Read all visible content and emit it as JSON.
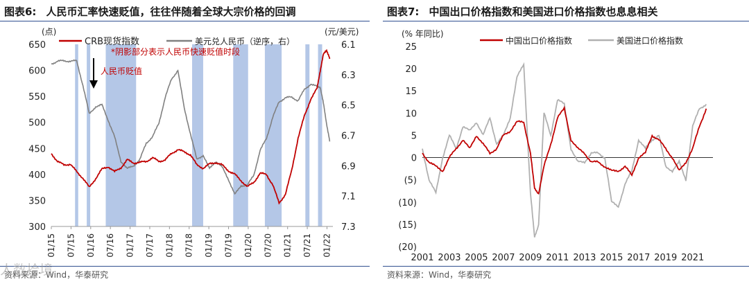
{
  "chart_data": [
    {
      "type": "line",
      "title_label": "图表6:",
      "title": "人民币汇率快速贬值，往往伴随着全球大宗价格的回调",
      "left_unit": "(点)",
      "right_unit": "(元/美元)",
      "ylim": [
        300,
        650
      ],
      "yticks": [
        300,
        350,
        400,
        450,
        500,
        550,
        600,
        650
      ],
      "y2lim": [
        7.3,
        6.1
      ],
      "y2ticks": [
        "6.1",
        "6.3",
        "6.5",
        "6.7",
        "6.9",
        "7.1",
        "7.3"
      ],
      "xlim": [
        0,
        89
      ],
      "categories": [
        "01/15",
        "07/15",
        "01/16",
        "07/16",
        "01/17",
        "07/17",
        "01/18",
        "07/18",
        "01/19",
        "07/19",
        "01/20",
        "07/20",
        "01/21",
        "07/21",
        "01/22"
      ],
      "series": [
        {
          "name": "CRB现货指数",
          "color": "#c00000",
          "axis": "left",
          "x": [
            0,
            2,
            4,
            6,
            8,
            10,
            12,
            14,
            16,
            18,
            20,
            22,
            24,
            26,
            28,
            30,
            32,
            34,
            36,
            38,
            40,
            42,
            44,
            46,
            48,
            50,
            52,
            54,
            56,
            58,
            60,
            62,
            64,
            66,
            68,
            70,
            72,
            74,
            76,
            78,
            80,
            82,
            84,
            85,
            86,
            87,
            88
          ],
          "values": [
            440,
            425,
            418,
            420,
            405,
            393,
            375,
            392,
            410,
            415,
            405,
            413,
            428,
            422,
            423,
            425,
            432,
            425,
            428,
            440,
            448,
            443,
            438,
            418,
            412,
            420,
            423,
            418,
            407,
            400,
            388,
            376,
            385,
            402,
            400,
            380,
            345,
            362,
            408,
            470,
            512,
            545,
            565,
            600,
            630,
            640,
            622
          ]
        },
        {
          "name": "美元兑人民币（逆序，右）",
          "color": "#8a8a8a",
          "axis": "right",
          "x": [
            0,
            2,
            4,
            6,
            8,
            10,
            12,
            14,
            16,
            18,
            20,
            22,
            24,
            26,
            28,
            30,
            32,
            34,
            36,
            38,
            40,
            42,
            44,
            46,
            48,
            50,
            52,
            54,
            56,
            58,
            60,
            62,
            64,
            66,
            68,
            70,
            72,
            74,
            76,
            78,
            80,
            82,
            84,
            85,
            86,
            87,
            88
          ],
          "values": [
            6.23,
            6.21,
            6.21,
            6.21,
            6.21,
            6.37,
            6.56,
            6.51,
            6.5,
            6.6,
            6.71,
            6.87,
            6.92,
            6.9,
            6.86,
            6.75,
            6.71,
            6.62,
            6.45,
            6.33,
            6.27,
            6.52,
            6.69,
            6.86,
            6.83,
            6.92,
            6.87,
            6.91,
            6.99,
            7.09,
            7.03,
            7.03,
            6.96,
            6.8,
            6.72,
            6.58,
            6.48,
            6.45,
            6.45,
            6.47,
            6.4,
            6.36,
            6.38,
            6.38,
            6.49,
            6.62,
            6.74
          ]
        }
      ],
      "shaded_spans": [
        [
          7.5,
          8.5
        ],
        [
          11.2,
          12.3
        ],
        [
          17.2,
          26.8
        ],
        [
          44.5,
          48
        ],
        [
          57.5,
          62.2
        ],
        [
          67.5,
          72.8
        ],
        [
          80.3,
          81.6
        ],
        [
          84.3,
          85.6
        ],
        [
          90,
          92.6
        ]
      ],
      "annotations": [
        "*阴影部分表示人民币快速贬值时段",
        "人民币贬值"
      ]
    },
    {
      "type": "line",
      "title_label": "图表7:",
      "title": "中国出口价格指数和美国进口价格指数也息息相关",
      "left_unit": "(% 年同比)",
      "ylim": [
        -20,
        25
      ],
      "yticks": [
        "25",
        "20",
        "15",
        "10",
        "5",
        "0",
        "(5)",
        "(10)",
        "(15)",
        "(20)"
      ],
      "xlim": [
        2001,
        2022.5
      ],
      "categories": [
        "2001",
        "2003",
        "2005",
        "2007",
        "2009",
        "2011",
        "2013",
        "2015",
        "2017",
        "2019",
        "2021"
      ],
      "series": [
        {
          "name": "中国出口价格指数",
          "color": "#c00000",
          "x": [
            2001,
            2001.5,
            2002,
            2002.5,
            2003,
            2003.5,
            2004,
            2004.5,
            2005,
            2005.5,
            2006,
            2006.5,
            2007,
            2007.5,
            2008,
            2008.5,
            2009,
            2009.3,
            2009.6,
            2010,
            2010.5,
            2011,
            2011.5,
            2012,
            2012.5,
            2013,
            2013.5,
            2014,
            2014.5,
            2015,
            2015.5,
            2016,
            2016.5,
            2017,
            2017.5,
            2018,
            2018.5,
            2019,
            2019.5,
            2020,
            2020.5,
            2021,
            2021.5,
            2022
          ],
          "values": [
            1,
            -1,
            -2,
            -3,
            0,
            2,
            4,
            2,
            5,
            3,
            1,
            2,
            5,
            6,
            8,
            8,
            1,
            -7,
            -8,
            -2,
            3,
            9,
            11,
            4,
            2,
            1,
            -1,
            -1,
            -2,
            -3,
            -3,
            -2,
            -4,
            0,
            1,
            5,
            4,
            2,
            0,
            -3,
            -1,
            2,
            7,
            11
          ]
        },
        {
          "name": "美国进口价格指数",
          "color": "#b0b0b0",
          "x": [
            2001,
            2001.5,
            2002,
            2002.5,
            2003,
            2003.5,
            2004,
            2004.5,
            2005,
            2005.5,
            2006,
            2006.5,
            2007,
            2007.5,
            2008,
            2008.5,
            2009,
            2009.3,
            2009.6,
            2010,
            2010.5,
            2011,
            2011.5,
            2012,
            2012.5,
            2013,
            2013.5,
            2014,
            2014.5,
            2015,
            2015.5,
            2016,
            2016.5,
            2017,
            2017.5,
            2018,
            2018.5,
            2019,
            2019.5,
            2020,
            2020.5,
            2021,
            2021.5,
            2022
          ],
          "values": [
            2,
            -5,
            -8,
            0,
            5,
            2,
            7,
            6,
            8,
            5,
            9,
            3,
            5,
            9,
            18,
            21,
            -8,
            -18,
            -15,
            10,
            5,
            13,
            12,
            2,
            -1,
            -1,
            1,
            1,
            0,
            -10,
            -11,
            -6,
            -3,
            4,
            2,
            4,
            5,
            -2,
            -3,
            -1,
            -5,
            7,
            11,
            12
          ]
        }
      ]
    }
  ],
  "sources": [
    "资料来源：Wind，华泰研究",
    "资料来源：Wind，华泰研究"
  ],
  "watermark": "人数拾境"
}
